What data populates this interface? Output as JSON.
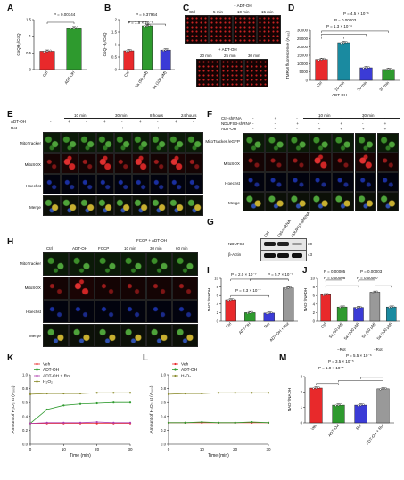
{
  "figure": {
    "panels": {
      "A": "A",
      "B": "B",
      "C": "C",
      "D": "D",
      "E": "E",
      "F": "F",
      "G": "G",
      "H": "H",
      "I": "I",
      "J": "J",
      "K": "K",
      "L": "L",
      "M": "M"
    },
    "stain_rows": [
      "MitoTracker",
      "MitoSOX",
      "Hoechst",
      "Merge"
    ],
    "scale_bar": "10 μm"
  },
  "panelA": {
    "ylabel": "CoQH₂/CoQ",
    "pvalue": "P = 0.00144",
    "categories": [
      "Ctrl",
      "ADT-OH"
    ]
  },
  "panelB": {
    "ylabel": "CoQ-H₂/CoQ",
    "pvalue_top": "P = 0.37964",
    "pvalue_bottom": "P = 1.9 × 10⁻⁶",
    "categories": [
      "Ctrl",
      "5a (50 μM)",
      "5a (100 μM)"
    ]
  },
  "panelC": {
    "top_title": "+ ADT-OH",
    "top_cols": [
      "Ctrl",
      "5 min",
      "10 min",
      "15 min"
    ],
    "bottom_title": "+ ADT-OH",
    "bottom_cols": [
      "20 min",
      "25 min",
      "30 min"
    ]
  },
  "panelD": {
    "ylabel": "TMRM fluorescence (A₅₈₅)",
    "yticks": [
      "0",
      "5000",
      "10000",
      "15000",
      "20000",
      "25000",
      "30000"
    ],
    "pvalues": [
      "P = 4.5 × 10⁻⁶",
      "P = 0.00003",
      "P = 1.3 × 10⁻⁴"
    ],
    "categories": [
      "Ctrl",
      "10 min",
      "20 min",
      "30 min"
    ],
    "group_label": "ADT-OH"
  },
  "panelE": {
    "time_labels": [
      "10 min",
      "30 min",
      "8 hours",
      "24 hours"
    ],
    "row1_label": "ADT-OH",
    "row2_label": "Rot",
    "row1": [
      "-",
      "+",
      "-",
      "+",
      "-",
      "+",
      "-",
      "+",
      "-"
    ],
    "row2": [
      "-",
      "-",
      "+",
      "-",
      "+",
      "-",
      "+",
      "-",
      "+"
    ]
  },
  "panelF": {
    "time_labels": [
      "10 min",
      "30 min"
    ],
    "rows": [
      {
        "label": "Ctrl-shRNA",
        "signs": [
          "-",
          "+",
          "-",
          "+",
          "-",
          "+",
          "-"
        ]
      },
      {
        "label": "NDUFS3-shRNA",
        "signs": [
          "-",
          "-",
          "+",
          "-",
          "+",
          "-",
          "+"
        ]
      },
      {
        "label": "ADT-OH",
        "signs": [
          "-",
          "-",
          "-",
          "+",
          "+",
          "+",
          "+"
        ]
      }
    ],
    "first_row_label": "MitoTracker /eGFP"
  },
  "panelG": {
    "cols": [
      "Ctrl",
      "Ctrl-shRNA",
      "NDUFS3-shRNA"
    ],
    "rows": [
      "NDUFS3",
      "β-Actin"
    ],
    "mw": [
      "30",
      "43"
    ]
  },
  "panelH": {
    "cols": [
      "Ctrl",
      "ADT-OH",
      "FCCP",
      "10 min",
      "30 min",
      "60 min"
    ],
    "group_title": "FCCP + ADT-OH"
  },
  "panelI": {
    "ylabel": "NAD⁺/NADH",
    "pvalues": [
      "P = 2.0 × 10⁻⁷",
      "P = 5.7 × 10⁻⁷",
      "P = 2.3 × 10⁻⁷"
    ],
    "categories": [
      "Ctrl",
      "ADT-OH",
      "Rot",
      "ADT-OH + Rot"
    ]
  },
  "panelJ": {
    "ylabel": "NAD⁺/NADH",
    "pvalues": [
      "P = 0.00005",
      "P = 0.00003",
      "P = 0.00008",
      "P = 0.00007"
    ],
    "categories": [
      "Ctrl",
      "5a (50 μM)",
      "5a (100 μM)",
      "5a (50 μM)",
      "5a (100 μM)"
    ],
    "group_labels": [
      "−Rot",
      "+Rot"
    ]
  },
  "panelK": {
    "ylabel": "Amount of H₂O₂ at (A₅₆₀)",
    "xlabel": "Time (min)",
    "legend": [
      "Veh",
      "ADT-OH",
      "ADT-OH + Rot",
      "H₂O₂"
    ]
  },
  "panelL": {
    "ylabel": "Amount of H₂O₂ at (A₅₆₀)",
    "xlabel": "Time (min)",
    "legend": [
      "Veh",
      "ADT-OH",
      "H₂O₂"
    ]
  },
  "panelM": {
    "ylabel": "NAD⁺/NADH",
    "pvalues": [
      "P = 3.5 × 10⁻⁵",
      "P = 1.0 × 10⁻⁵",
      "P = 5.5 × 10⁻⁶"
    ],
    "categories": [
      "Veh",
      "ADT-OH",
      "Rot",
      "ADT-OH + Rot"
    ]
  },
  "chart_data": [
    {
      "id": "A",
      "type": "bar",
      "categories": [
        "Ctrl",
        "ADT-OH"
      ],
      "values": [
        0.55,
        1.25
      ],
      "ylim": [
        0,
        1.5
      ],
      "yticks": [
        0,
        0.5,
        1.0,
        1.5
      ],
      "ylabel": "CoQH₂/CoQ",
      "colors": [
        "#e8292b",
        "#2e9a2e"
      ]
    },
    {
      "id": "B",
      "type": "bar",
      "categories": [
        "Ctrl",
        "5a (50 μM)",
        "5a (100 μM)"
      ],
      "values": [
        0.75,
        1.75,
        0.78
      ],
      "ylim": [
        0,
        2.0
      ],
      "yticks": [
        0,
        0.5,
        1.0,
        1.5,
        2.0
      ],
      "ylabel": "CoQ-H₂/CoQ",
      "colors": [
        "#e8292b",
        "#2e9a2e",
        "#3b3bd6"
      ]
    },
    {
      "id": "D",
      "type": "bar",
      "categories": [
        "Ctrl",
        "10 min",
        "20 min",
        "30 min"
      ],
      "values": [
        12500,
        22500,
        7500,
        6500
      ],
      "ylim": [
        0,
        30000
      ],
      "yticks": [
        0,
        5000,
        10000,
        15000,
        20000,
        25000,
        30000
      ],
      "ylabel": "TMRM fluorescence (A₅₈₅)",
      "colors": [
        "#e8292b",
        "#1a8aa0",
        "#3b3bd6",
        "#2e9a2e"
      ]
    },
    {
      "id": "I",
      "type": "bar",
      "categories": [
        "Ctrl",
        "ADT-OH",
        "Rot",
        "ADT-OH + Rot"
      ],
      "values": [
        5.0,
        2.0,
        1.9,
        7.8
      ],
      "ylim": [
        0,
        10
      ],
      "yticks": [
        0,
        2,
        4,
        6,
        8,
        10
      ],
      "ylabel": "NAD⁺/NADH",
      "colors": [
        "#e8292b",
        "#2e9a2e",
        "#3b3bd6",
        "#999999"
      ]
    },
    {
      "id": "J",
      "type": "bar",
      "categories": [
        "Ctrl",
        "5a (50 μM)",
        "5a (100 μM)",
        "5a (50 μM)",
        "5a (100 μM)"
      ],
      "values": [
        6.2,
        3.3,
        3.2,
        6.8,
        3.3
      ],
      "ylim": [
        0,
        10
      ],
      "yticks": [
        0,
        2,
        4,
        6,
        8,
        10
      ],
      "ylabel": "NAD⁺/NADH",
      "colors": [
        "#e8292b",
        "#2e9a2e",
        "#3b3bd6",
        "#999999",
        "#1a8aa0"
      ]
    },
    {
      "id": "K",
      "type": "line",
      "x": [
        0,
        5,
        10,
        15,
        20,
        25,
        30
      ],
      "xlim": [
        0,
        30
      ],
      "ylim": [
        0,
        1.0
      ],
      "xticks": [
        0,
        10,
        20,
        30
      ],
      "yticks": [
        0,
        0.2,
        0.4,
        0.6,
        0.8,
        1.0
      ],
      "xlabel": "Time (min)",
      "ylabel": "Amount of H₂O₂ at (A₅₆₀)",
      "series": [
        {
          "name": "Veh",
          "color": "#e8292b",
          "values": [
            0.3,
            0.3,
            0.3,
            0.3,
            0.3,
            0.3,
            0.3
          ]
        },
        {
          "name": "ADT-OH",
          "color": "#2e9a2e",
          "values": [
            0.3,
            0.5,
            0.56,
            0.58,
            0.59,
            0.6,
            0.6
          ]
        },
        {
          "name": "ADT-OH + Rot",
          "color": "#b040b0",
          "values": [
            0.3,
            0.31,
            0.31,
            0.31,
            0.32,
            0.31,
            0.31
          ]
        },
        {
          "name": "H₂O₂",
          "color": "#8a8a2a",
          "values": [
            0.72,
            0.73,
            0.73,
            0.73,
            0.74,
            0.74,
            0.74
          ]
        }
      ]
    },
    {
      "id": "L",
      "type": "line",
      "x": [
        0,
        5,
        10,
        15,
        20,
        25,
        30
      ],
      "xlim": [
        0,
        30
      ],
      "ylim": [
        0,
        1.0
      ],
      "xticks": [
        0,
        10,
        20,
        30
      ],
      "yticks": [
        0,
        0.2,
        0.4,
        0.6,
        0.8,
        1.0
      ],
      "xlabel": "Time (min)",
      "ylabel": "Amount of H₂O₂ at (A₅₆₀)",
      "series": [
        {
          "name": "Veh",
          "color": "#e8292b",
          "values": [
            0.31,
            0.31,
            0.31,
            0.31,
            0.31,
            0.31,
            0.31
          ]
        },
        {
          "name": "ADT-OH",
          "color": "#2e9a2e",
          "values": [
            0.31,
            0.31,
            0.32,
            0.31,
            0.31,
            0.32,
            0.31
          ]
        },
        {
          "name": "H₂O₂",
          "color": "#8a8a2a",
          "values": [
            0.72,
            0.73,
            0.73,
            0.74,
            0.74,
            0.74,
            0.74
          ]
        }
      ]
    },
    {
      "id": "M",
      "type": "bar",
      "categories": [
        "Veh",
        "ADT-OH",
        "Rot",
        "ADT-OH + Rot"
      ],
      "values": [
        2.25,
        1.15,
        1.15,
        2.2
      ],
      "ylim": [
        0,
        3
      ],
      "yticks": [
        0,
        1,
        2,
        3
      ],
      "ylabel": "NAD⁺/NADH",
      "colors": [
        "#e8292b",
        "#2e9a2e",
        "#3b3bd6",
        "#999999"
      ]
    }
  ]
}
